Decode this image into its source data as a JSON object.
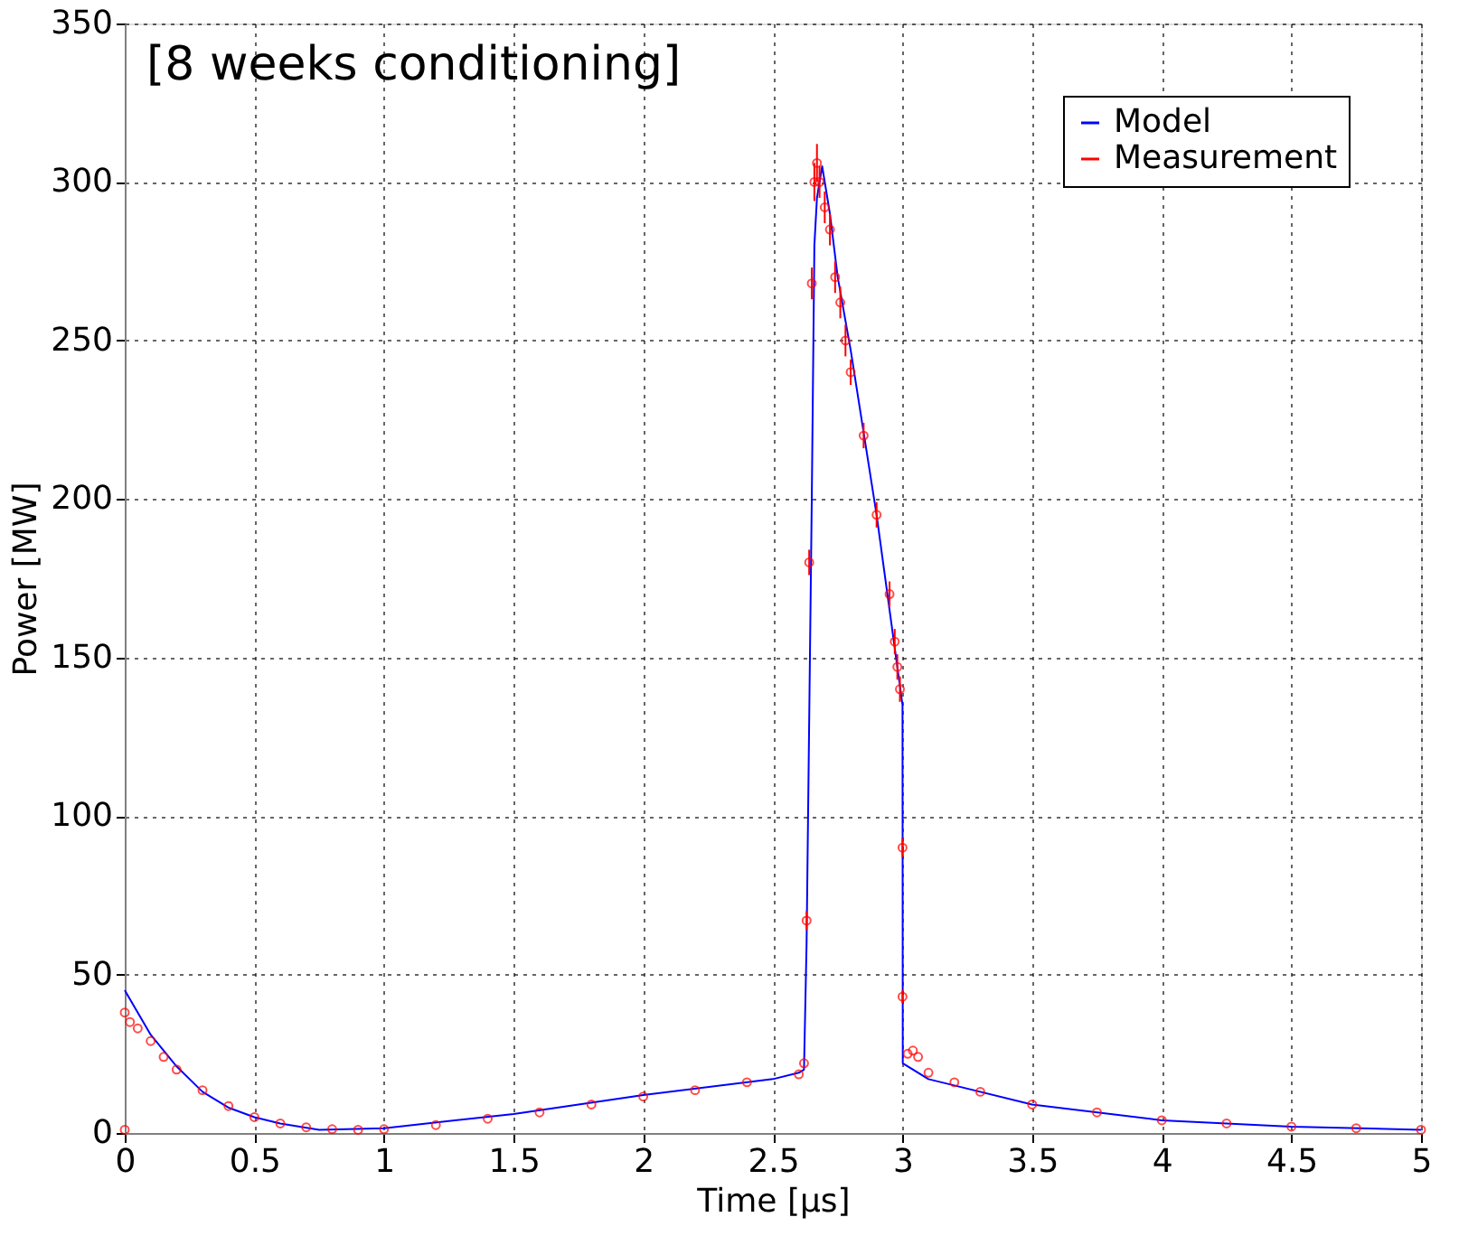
{
  "chart_data": {
    "type": "line",
    "xlabel": "Time  [μs]",
    "ylabel": "Power  [MW]",
    "annotations": [
      "[8 weeks conditioning]"
    ],
    "xlim": [
      0,
      5
    ],
    "xticks": [
      0,
      0.5,
      1,
      1.5,
      2,
      2.5,
      3,
      3.5,
      4,
      4.5,
      5
    ],
    "ylim": [
      0,
      350
    ],
    "yticks": [
      0,
      50,
      100,
      150,
      200,
      250,
      300,
      350
    ],
    "grid": true,
    "legend": "top right",
    "series": [
      {
        "name": "Model",
        "type": "line",
        "color": "#0000ff",
        "marker": "none",
        "x": [
          0,
          0.1,
          0.2,
          0.3,
          0.4,
          0.5,
          0.6,
          0.75,
          1.0,
          1.5,
          2.0,
          2.5,
          2.6,
          2.62,
          2.63,
          2.65,
          2.66,
          2.67,
          2.69,
          2.72,
          2.75,
          2.8,
          2.9,
          2.95,
          3.0,
          3.001,
          3.1,
          3.2,
          3.5,
          4.0,
          4.5,
          5.0
        ],
        "values": [
          45,
          31,
          21,
          13,
          8,
          5,
          3,
          1,
          1.5,
          6,
          12,
          17,
          19,
          20,
          60,
          200,
          280,
          295,
          305,
          290,
          270,
          247,
          195,
          165,
          135,
          22,
          17,
          15,
          9,
          4,
          2,
          1
        ]
      },
      {
        "name": "Measurement",
        "type": "scatter",
        "color": "#ff0000",
        "marker": "circle",
        "x": [
          0,
          0,
          0.02,
          0.05,
          0.1,
          0.15,
          0.2,
          0.3,
          0.4,
          0.5,
          0.6,
          0.7,
          0.8,
          0.9,
          1.0,
          1.2,
          1.4,
          1.6,
          1.8,
          2.0,
          2.2,
          2.4,
          2.6,
          2.62,
          2.63,
          2.64,
          2.65,
          2.66,
          2.67,
          2.68,
          2.7,
          2.72,
          2.74,
          2.76,
          2.78,
          2.8,
          2.85,
          2.9,
          2.95,
          2.97,
          2.98,
          2.99,
          3.0,
          3.0,
          3.02,
          3.04,
          3.06,
          3.1,
          3.2,
          3.3,
          3.5,
          3.75,
          4.0,
          4.25,
          4.5,
          4.75,
          5.0
        ],
        "values": [
          1,
          38,
          35,
          33,
          29,
          24,
          20,
          13.5,
          8.5,
          5,
          3,
          1.8,
          1.2,
          1,
          1.2,
          2.5,
          4.5,
          6.5,
          9,
          11.5,
          13.5,
          16,
          18.5,
          22,
          67,
          180,
          268,
          300,
          306,
          300,
          292,
          285,
          270,
          262,
          250,
          240,
          220,
          195,
          170,
          155,
          147,
          140,
          90,
          43,
          25,
          26,
          24,
          19,
          16,
          13,
          9,
          6.5,
          4,
          3,
          2,
          1.5,
          1
        ],
        "errors": [
          null,
          null,
          null,
          null,
          null,
          null,
          null,
          null,
          null,
          null,
          null,
          null,
          null,
          null,
          null,
          null,
          null,
          null,
          null,
          null,
          null,
          null,
          null,
          null,
          3,
          4,
          5,
          6,
          6,
          5,
          5,
          5,
          5,
          5,
          5,
          4,
          4,
          4,
          4,
          4,
          4,
          4,
          3,
          2,
          null,
          null,
          null,
          null,
          null,
          null,
          null,
          null,
          null,
          null,
          null,
          null,
          null
        ]
      }
    ]
  }
}
